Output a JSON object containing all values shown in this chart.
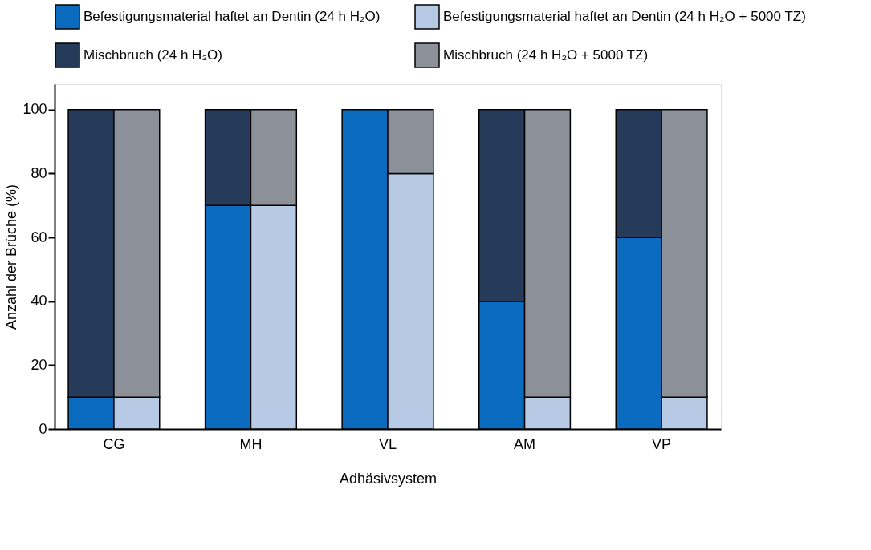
{
  "chart_data": {
    "type": "bar",
    "stacked": true,
    "xlabel": "Adhäsivsystem",
    "ylabel": "Anzahl der Brüche (%)",
    "categories": [
      "CG",
      null,
      null,
      "MH",
      null,
      null,
      "VL",
      null,
      null,
      "AM",
      null,
      null,
      "VP",
      null
    ],
    "series": [
      {
        "name": "Befestigungsmaterial haftet an Dentin (24 h H₂O)",
        "color": "#0b6cbf",
        "values": [
          10,
          null,
          null,
          70,
          null,
          null,
          100,
          null,
          null,
          40,
          null,
          null,
          60,
          null
        ]
      },
      {
        "name": "Befestigungsmaterial haftet an Dentin (24 h H₂O + 5000 TZ)",
        "color": "#b6cae6",
        "values": [
          null,
          10,
          null,
          null,
          70,
          null,
          null,
          80,
          null,
          null,
          10,
          null,
          null,
          10
        ]
      },
      {
        "name": "Mischbruch (24 h H₂O)",
        "color": "#263a5a",
        "values": [
          90,
          null,
          null,
          30,
          null,
          null,
          null,
          null,
          null,
          60,
          null,
          null,
          40,
          null
        ]
      },
      {
        "name": "Mischbruch (24 h H₂O + 5000 TZ)",
        "color": "#8b9099",
        "values": [
          null,
          90,
          null,
          null,
          30,
          null,
          null,
          20,
          null,
          null,
          90,
          null,
          null,
          90
        ]
      }
    ],
    "ylim": [
      0,
      108
    ],
    "yticks": [
      0,
      20,
      40,
      60,
      80,
      100
    ],
    "grid": false,
    "legend": "top"
  }
}
